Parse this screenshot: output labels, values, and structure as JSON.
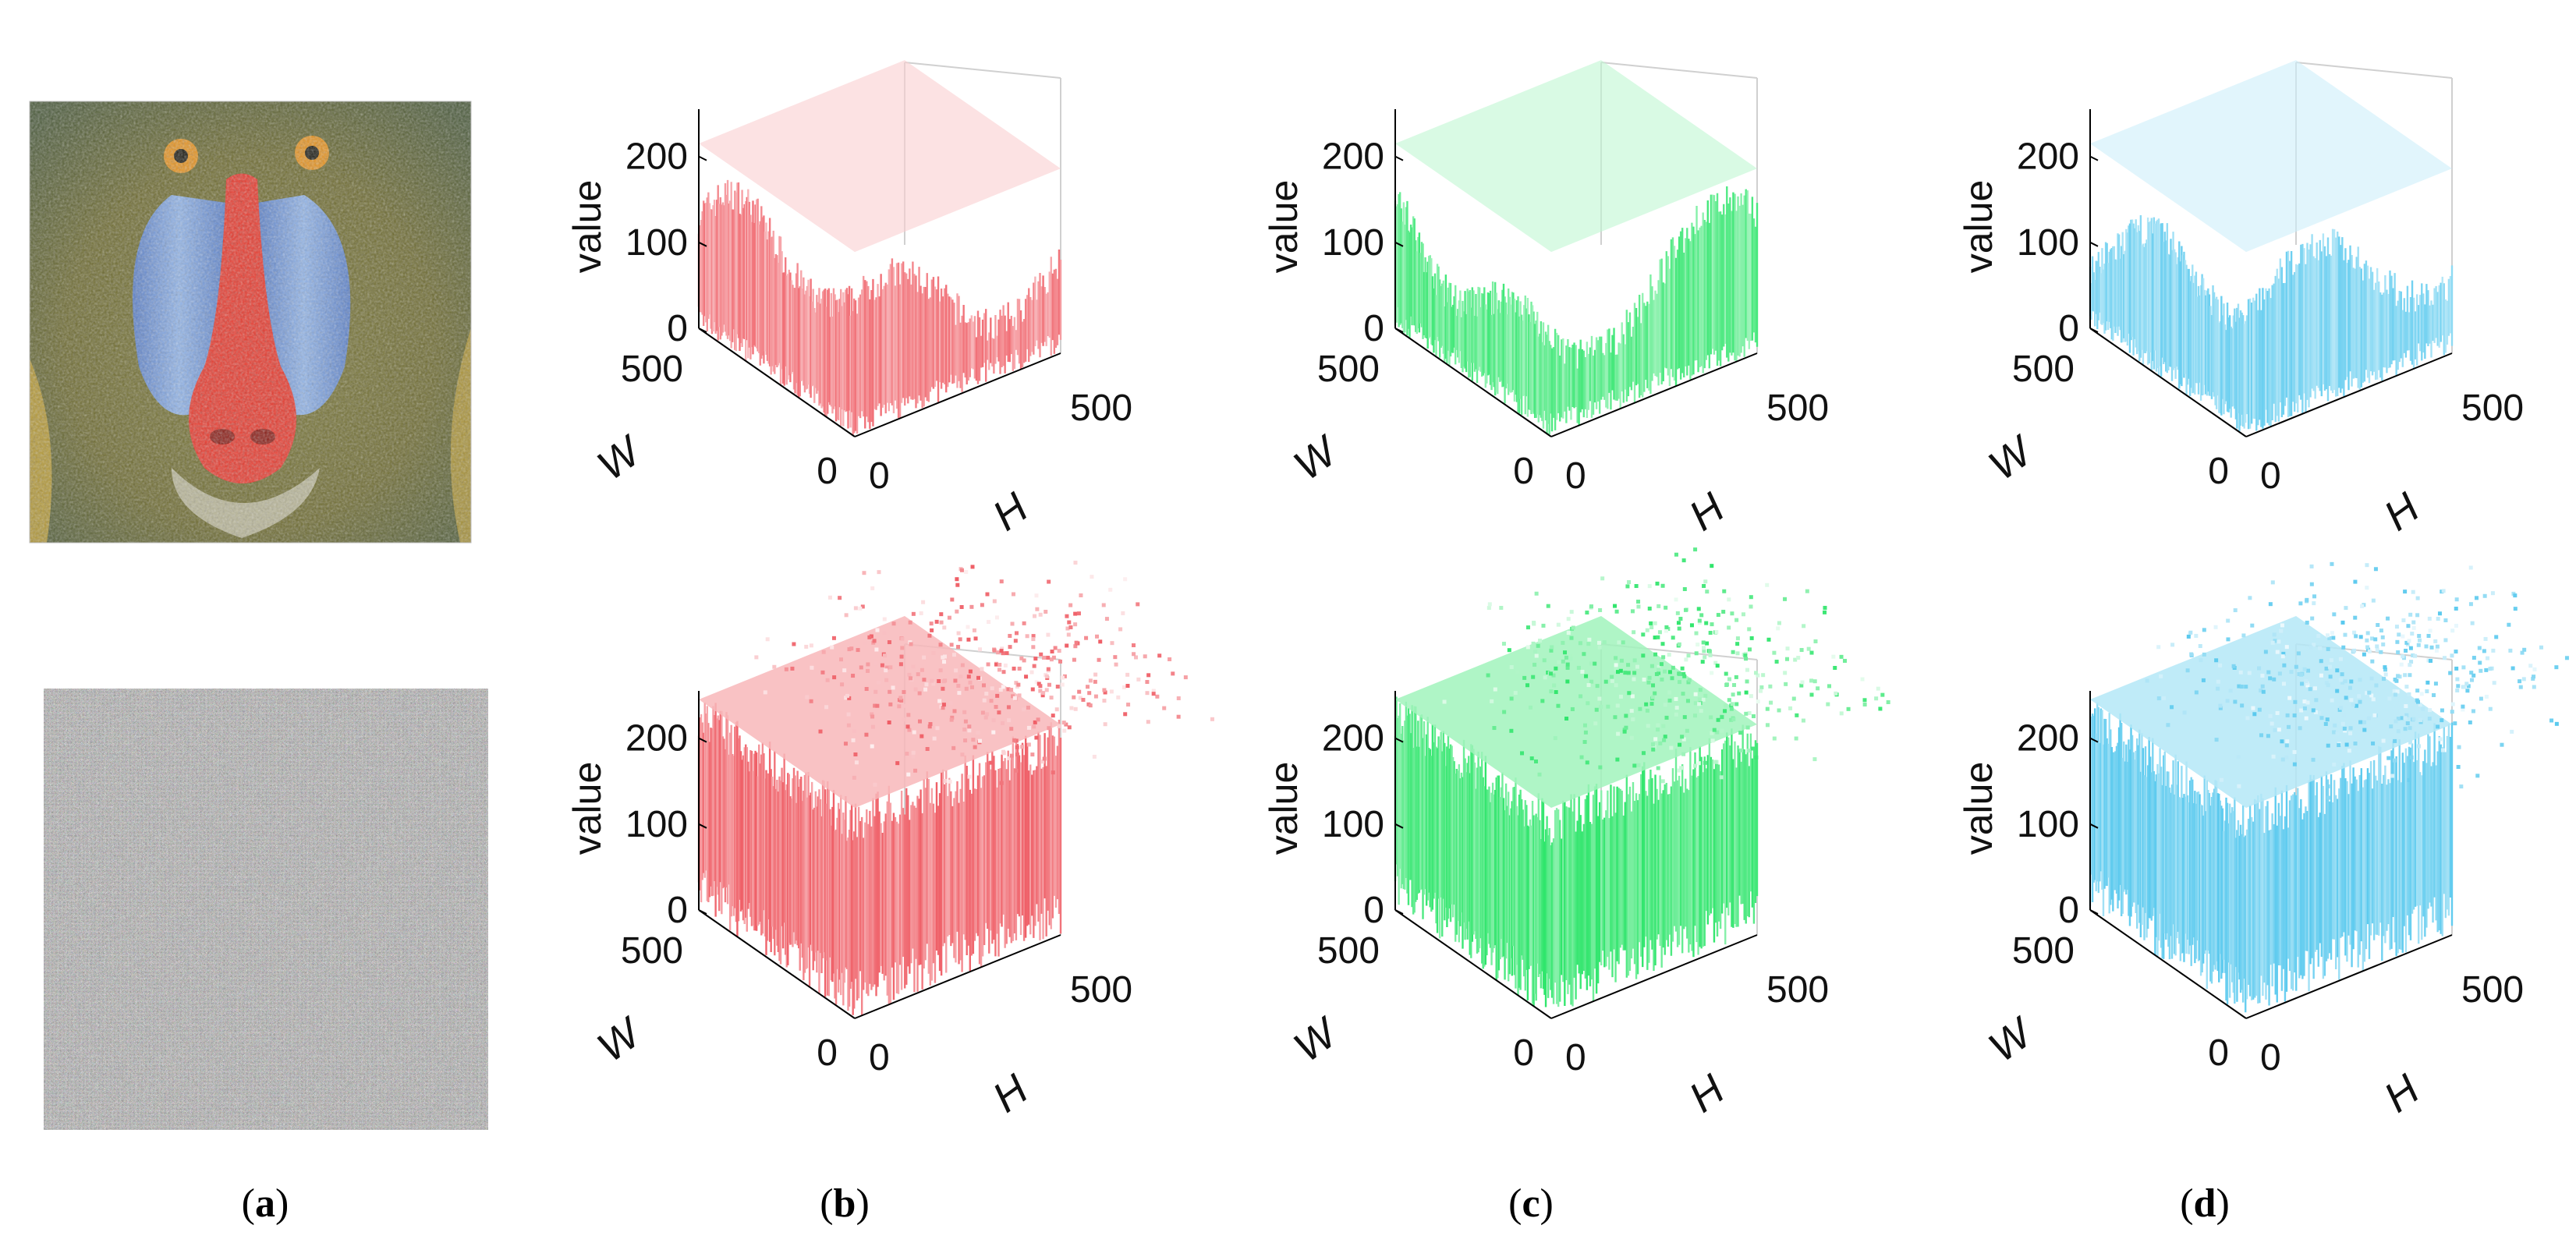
{
  "figure": {
    "panel_labels": [
      "a",
      "b",
      "c",
      "d"
    ],
    "source_image": "plain mandrill (baboon) colour image",
    "encrypted_image": "cipher image (uniform colour noise)"
  },
  "chart_data": [
    {
      "panel": "b",
      "row": "plain",
      "channel": "red",
      "type": "surface3d",
      "color": "#ef5e66",
      "zlabel": "value",
      "xlabel": "W",
      "ylabel": "H",
      "zticks": [
        0,
        100,
        200
      ],
      "wticks": [
        0,
        500
      ],
      "hticks": [
        0,
        500
      ],
      "zlim": [
        0,
        255
      ],
      "surface": "smooth terrain ~50-230"
    },
    {
      "panel": "c",
      "row": "plain",
      "channel": "green",
      "type": "surface3d",
      "color": "#2de56a",
      "zlabel": "value",
      "xlabel": "W",
      "ylabel": "H",
      "zticks": [
        0,
        100,
        200
      ],
      "wticks": [
        0,
        500
      ],
      "hticks": [
        0,
        500
      ],
      "zlim": [
        0,
        255
      ],
      "surface": "smooth terrain ~30-240"
    },
    {
      "panel": "d",
      "row": "plain",
      "channel": "blue",
      "type": "surface3d",
      "color": "#59c9ee",
      "zlabel": "value",
      "xlabel": "W",
      "ylabel": "H",
      "zticks": [
        0,
        100,
        200
      ],
      "wticks": [
        0,
        500
      ],
      "hticks": [
        0,
        500
      ],
      "zlim": [
        0,
        255
      ],
      "surface": "smooth terrain ~50-250"
    },
    {
      "panel": "b",
      "row": "cipher",
      "channel": "red",
      "type": "surface3d",
      "color": "#ef5e66",
      "zlabel": "value",
      "xlabel": "W",
      "ylabel": "H",
      "zticks": [
        0,
        100,
        200
      ],
      "wticks": [
        0,
        500
      ],
      "hticks": [
        0,
        500
      ],
      "zlim": [
        0,
        255
      ],
      "surface": "uniform noise 0-255"
    },
    {
      "panel": "c",
      "row": "cipher",
      "channel": "green",
      "type": "surface3d",
      "color": "#2de56a",
      "zlabel": "value",
      "xlabel": "W",
      "ylabel": "H",
      "zticks": [
        0,
        100,
        200
      ],
      "wticks": [
        0,
        500
      ],
      "hticks": [
        0,
        500
      ],
      "zlim": [
        0,
        255
      ],
      "surface": "uniform noise 0-255"
    },
    {
      "panel": "d",
      "row": "cipher",
      "channel": "blue",
      "type": "surface3d",
      "color": "#59c9ee",
      "zlabel": "value",
      "xlabel": "W",
      "ylabel": "H",
      "zticks": [
        0,
        100,
        200
      ],
      "wticks": [
        0,
        500
      ],
      "hticks": [
        0,
        500
      ],
      "zlim": [
        0,
        255
      ],
      "surface": "uniform noise 0-255"
    }
  ]
}
